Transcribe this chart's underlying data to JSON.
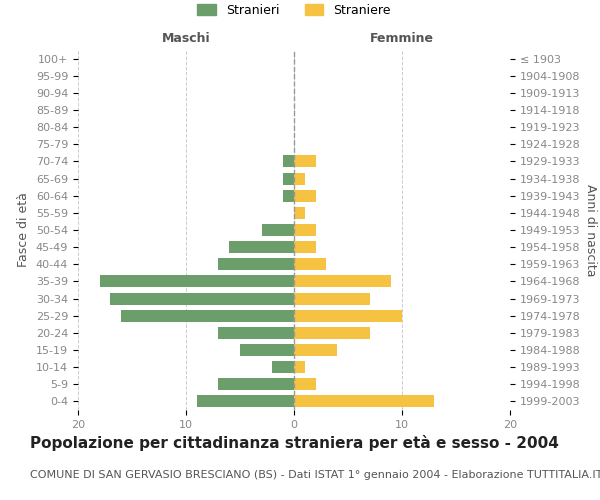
{
  "age_groups": [
    "0-4",
    "5-9",
    "10-14",
    "15-19",
    "20-24",
    "25-29",
    "30-34",
    "35-39",
    "40-44",
    "45-49",
    "50-54",
    "55-59",
    "60-64",
    "65-69",
    "70-74",
    "75-79",
    "80-84",
    "85-89",
    "90-94",
    "95-99",
    "100+"
  ],
  "birth_years": [
    "1999-2003",
    "1994-1998",
    "1989-1993",
    "1984-1988",
    "1979-1983",
    "1974-1978",
    "1969-1973",
    "1964-1968",
    "1959-1963",
    "1954-1958",
    "1949-1953",
    "1944-1948",
    "1939-1943",
    "1934-1938",
    "1929-1933",
    "1924-1928",
    "1919-1923",
    "1914-1918",
    "1909-1913",
    "1904-1908",
    "≤ 1903"
  ],
  "maschi": [
    9,
    7,
    2,
    5,
    7,
    16,
    17,
    18,
    7,
    6,
    3,
    0,
    1,
    1,
    1,
    0,
    0,
    0,
    0,
    0,
    0
  ],
  "femmine": [
    13,
    2,
    1,
    4,
    7,
    10,
    7,
    9,
    3,
    2,
    2,
    1,
    2,
    1,
    2,
    0,
    0,
    0,
    0,
    0,
    0
  ],
  "color_maschi": "#6b9e6b",
  "color_femmine": "#f5c242",
  "background_color": "#ffffff",
  "grid_color": "#cccccc",
  "title": "Popolazione per cittadinanza straniera per età e sesso - 2004",
  "subtitle": "COMUNE DI SAN GERVASIO BRESCIANO (BS) - Dati ISTAT 1° gennaio 2004 - Elaborazione TUTTITALIA.IT",
  "xlabel_left": "Maschi",
  "xlabel_right": "Femmine",
  "ylabel_left": "Fasce di età",
  "ylabel_right": "Anni di nascita",
  "legend_stranieri": "Stranieri",
  "legend_straniere": "Straniere",
  "xlim": 20,
  "title_fontsize": 11,
  "subtitle_fontsize": 8,
  "tick_fontsize": 8,
  "label_fontsize": 9
}
